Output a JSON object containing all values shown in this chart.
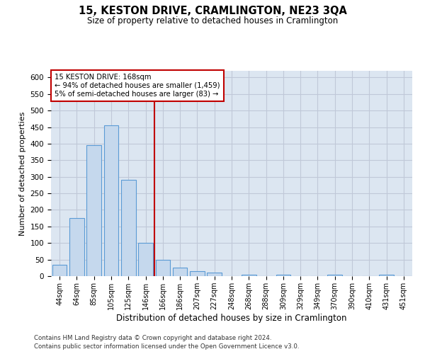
{
  "title": "15, KESTON DRIVE, CRAMLINGTON, NE23 3QA",
  "subtitle": "Size of property relative to detached houses in Cramlington",
  "xlabel": "Distribution of detached houses by size in Cramlington",
  "ylabel": "Number of detached properties",
  "annotation_line1": "15 KESTON DRIVE: 168sqm",
  "annotation_line2": "← 94% of detached houses are smaller (1,459)",
  "annotation_line3": "5% of semi-detached houses are larger (83) →",
  "categories": [
    "44sqm",
    "64sqm",
    "85sqm",
    "105sqm",
    "125sqm",
    "146sqm",
    "166sqm",
    "186sqm",
    "207sqm",
    "227sqm",
    "248sqm",
    "268sqm",
    "288sqm",
    "309sqm",
    "329sqm",
    "349sqm",
    "370sqm",
    "390sqm",
    "410sqm",
    "431sqm",
    "451sqm"
  ],
  "values": [
    35,
    175,
    395,
    455,
    290,
    100,
    50,
    25,
    15,
    10,
    0,
    5,
    0,
    5,
    0,
    0,
    5,
    0,
    0,
    5,
    0
  ],
  "bar_color": "#c5d8ed",
  "bar_edge_color": "#5b9bd5",
  "vline_color": "#c00000",
  "vline_x_index": 6,
  "ylim": [
    0,
    620
  ],
  "yticks": [
    0,
    50,
    100,
    150,
    200,
    250,
    300,
    350,
    400,
    450,
    500,
    550,
    600
  ],
  "grid_color": "#c0c8d8",
  "bg_color": "#dce6f1",
  "footer_line1": "Contains HM Land Registry data © Crown copyright and database right 2024.",
  "footer_line2": "Contains public sector information licensed under the Open Government Licence v3.0."
}
